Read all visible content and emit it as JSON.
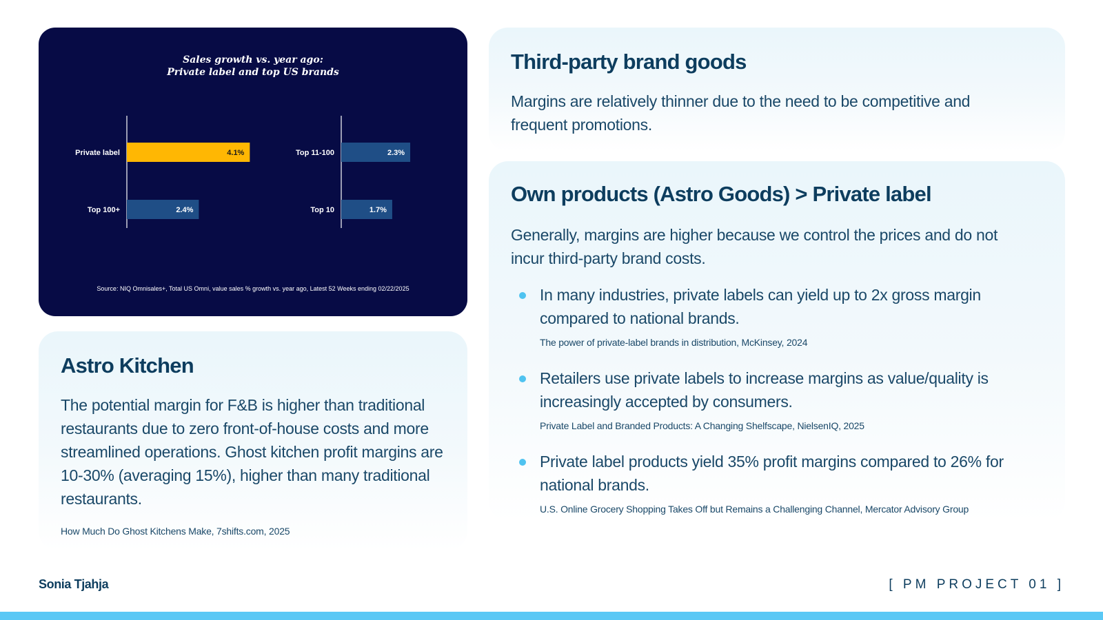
{
  "chart_data": {
    "type": "bar",
    "title": "Sales growth vs. year ago:",
    "subtitle": "Private label and top US brands",
    "source": "Source: NIQ Omnisales+, Total US Omni, value sales % growth vs. year ago, Latest 52 Weeks ending 02/22/2025",
    "unit": "%",
    "groups": [
      {
        "categories": [
          "Private label",
          "Top 100+"
        ],
        "values": [
          4.1,
          2.4
        ],
        "labels": [
          "4.1%",
          "2.4%"
        ]
      },
      {
        "categories": [
          "Top 11-100",
          "Top 10"
        ],
        "values": [
          2.3,
          1.7
        ],
        "labels": [
          "2.3%",
          "1.7%"
        ]
      }
    ],
    "colors": {
      "highlight": "#ffb703",
      "default": "#1f4e86",
      "axis": "#ffffff",
      "background": "#070b45"
    }
  },
  "astro_kitchen": {
    "heading": "Astro Kitchen",
    "body": "The potential margin for F&B is higher than traditional restaurants due to zero front-of-house costs and more streamlined operations. Ghost kitchen profit margins are 10-30% (averaging 15%), higher than many traditional restaurants.",
    "source": "How Much Do Ghost Kitchens Make, 7shifts.com, 2025"
  },
  "third_party": {
    "heading": "Third-party brand goods",
    "body": "Margins are relatively thinner due to the need to be competitive and frequent promotions."
  },
  "own_products": {
    "heading": "Own products (Astro Goods) > Private label",
    "body": "Generally, margins are higher because we control the prices and do not incur third-party brand costs.",
    "bullets": [
      {
        "text": "In many industries, private labels can yield up to 2x gross margin compared to national brands.",
        "source": "The power of private-label brands in distribution, McKinsey, 2024"
      },
      {
        "text": "Retailers use private labels to increase margins as value/quality is increasingly accepted by consumers.",
        "source": "Private Label and Branded Products: A Changing Shelfscape, NielsenIQ, 2025"
      },
      {
        "text": "Private label products yield 35% profit margins compared to 26% for national brands.",
        "source": "U.S. Online Grocery Shopping Takes Off but Remains a Challenging Channel, Mercator Advisory Group"
      }
    ]
  },
  "footer": {
    "author": "Sonia Tjahja",
    "project": "[ PM PROJECT 01 ]"
  },
  "colors": {
    "accent": "#5ac8f5",
    "heading": "#0d3d5e",
    "bullet": "#4fc3f0"
  }
}
